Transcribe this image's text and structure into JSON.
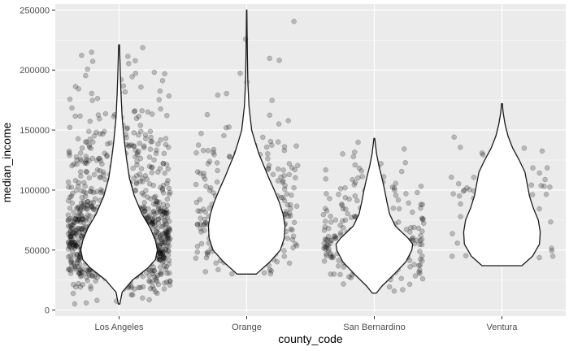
{
  "chart_data": {
    "type": "violin",
    "title": "",
    "xlabel": "county_code",
    "ylabel": "median_income",
    "categories": [
      "Los Angeles",
      "Orange",
      "San Bernardino",
      "Ventura"
    ],
    "ylim": [
      -5000,
      255000
    ],
    "yticks": [
      0,
      50000,
      100000,
      150000,
      200000,
      250000
    ],
    "ytick_labels": [
      "0",
      "50000",
      "100000",
      "150000",
      "200000",
      "250000"
    ],
    "grid": true,
    "legend": "none",
    "colors": {
      "panel": "#ebebeb",
      "grid": "#ffffff",
      "violin_fill": "#ffffff",
      "violin_stroke": "#1a1a1a",
      "point": "#000000"
    },
    "groups": [
      {
        "name": "Los Angeles",
        "n_points": 1150,
        "min": 5000,
        "max": 221000,
        "density": [
          [
            5000,
            0.02
          ],
          [
            15000,
            0.08
          ],
          [
            25000,
            0.35
          ],
          [
            35000,
            0.75
          ],
          [
            42000,
            0.95
          ],
          [
            50000,
            1.0
          ],
          [
            58000,
            0.95
          ],
          [
            68000,
            0.82
          ],
          [
            80000,
            0.6
          ],
          [
            95000,
            0.4
          ],
          [
            110000,
            0.27
          ],
          [
            125000,
            0.2
          ],
          [
            140000,
            0.14
          ],
          [
            160000,
            0.08
          ],
          [
            180000,
            0.05
          ],
          [
            200000,
            0.03
          ],
          [
            221000,
            0.01
          ]
        ]
      },
      {
        "name": "Orange",
        "n_points": 300,
        "min": 30000,
        "max": 250000,
        "density": [
          [
            30000,
            0.25
          ],
          [
            40000,
            0.6
          ],
          [
            50000,
            0.88
          ],
          [
            60000,
            0.98
          ],
          [
            70000,
            1.0
          ],
          [
            80000,
            0.95
          ],
          [
            90000,
            0.85
          ],
          [
            100000,
            0.72
          ],
          [
            110000,
            0.58
          ],
          [
            120000,
            0.45
          ],
          [
            130000,
            0.32
          ],
          [
            140000,
            0.22
          ],
          [
            150000,
            0.13
          ],
          [
            170000,
            0.06
          ],
          [
            190000,
            0.03
          ],
          [
            210000,
            0.02
          ],
          [
            230000,
            0.01
          ],
          [
            250000,
            0.005
          ]
        ]
      },
      {
        "name": "San Bernardino",
        "n_points": 280,
        "min": 14000,
        "max": 143000,
        "density": [
          [
            14000,
            0.05
          ],
          [
            20000,
            0.2
          ],
          [
            30000,
            0.52
          ],
          [
            40000,
            0.82
          ],
          [
            50000,
            0.98
          ],
          [
            55000,
            1.0
          ],
          [
            60000,
            0.88
          ],
          [
            70000,
            0.55
          ],
          [
            80000,
            0.4
          ],
          [
            90000,
            0.33
          ],
          [
            100000,
            0.27
          ],
          [
            110000,
            0.2
          ],
          [
            120000,
            0.12
          ],
          [
            130000,
            0.06
          ],
          [
            143000,
            0.01
          ]
        ]
      },
      {
        "name": "Ventura",
        "n_points": 95,
        "min": 37000,
        "max": 172000,
        "density": [
          [
            37000,
            0.52
          ],
          [
            45000,
            0.8
          ],
          [
            55000,
            0.98
          ],
          [
            65000,
            1.0
          ],
          [
            75000,
            0.95
          ],
          [
            85000,
            0.82
          ],
          [
            95000,
            0.72
          ],
          [
            105000,
            0.66
          ],
          [
            115000,
            0.6
          ],
          [
            125000,
            0.45
          ],
          [
            135000,
            0.28
          ],
          [
            145000,
            0.16
          ],
          [
            155000,
            0.08
          ],
          [
            165000,
            0.03
          ],
          [
            172000,
            0.01
          ]
        ]
      }
    ]
  }
}
